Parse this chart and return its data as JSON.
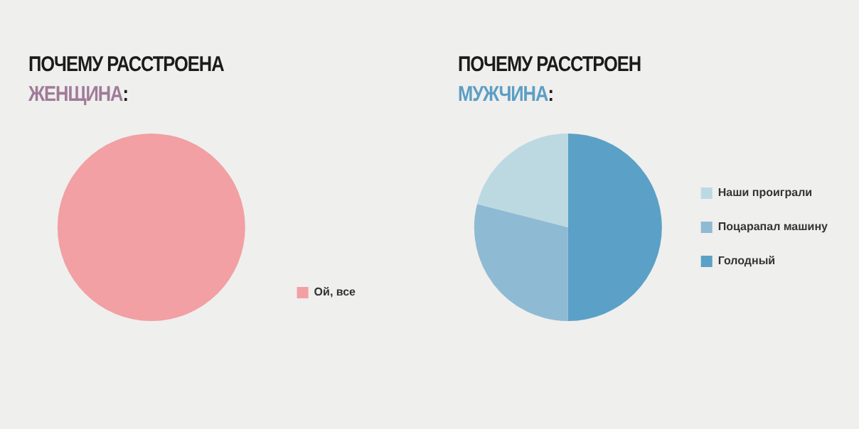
{
  "chart_data": [
    {
      "type": "pie",
      "title": "ПОЧЕМУ РАССТРОЕНА",
      "subtitle": "ЖЕНЩИНА:",
      "categories": [
        "Ой, все"
      ],
      "values": [
        100
      ],
      "colors": [
        "#f2a0a3"
      ],
      "legend": "bottom right"
    },
    {
      "type": "pie",
      "title": "ПОЧЕМУ РАССТРОЕН",
      "subtitle": "МУЖЧИНА:",
      "categories": [
        "Наши проиграли",
        "Поцарапал машину",
        "Голодный"
      ],
      "values": [
        21,
        29,
        50
      ],
      "colors": [
        "#bcd9e2",
        "#8fbad3",
        "#5ba0c6"
      ],
      "legend": "right"
    }
  ]
}
